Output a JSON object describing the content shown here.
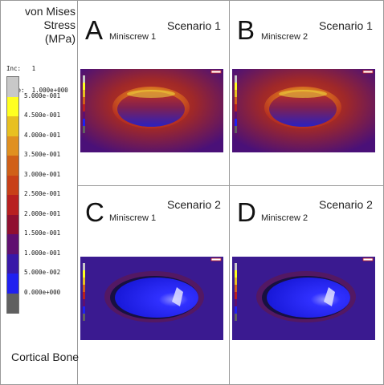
{
  "legend": {
    "title_lines": [
      "von Mises",
      "Stress",
      "(MPa)"
    ],
    "inc_label": "Inc:",
    "inc_value": "1",
    "time_label": "Time:",
    "time_value": "1.000e+000",
    "ticks": [
      "5.000e-001",
      "4.500e-001",
      "4.000e-001",
      "3.500e-001",
      "3.000e-001",
      "2.500e-001",
      "2.000e-001",
      "1.500e-001",
      "1.000e-001",
      "5.000e-002",
      "0.000e+000"
    ],
    "colors": [
      "#c8c8c8",
      "#ffff20",
      "#e8c020",
      "#e09020",
      "#d06018",
      "#c84018",
      "#b82020",
      "#901030",
      "#601070",
      "#3818a8",
      "#2020f0",
      "#606060"
    ],
    "material": "Cortical Bone"
  },
  "panels": [
    {
      "letter": "A",
      "screw": "Miniscrew 1",
      "scenario": "Scenario 1",
      "mode": "s1"
    },
    {
      "letter": "B",
      "screw": "Miniscrew 2",
      "scenario": "Scenario 1",
      "mode": "s1"
    },
    {
      "letter": "C",
      "screw": "Miniscrew 1",
      "scenario": "Scenario 2",
      "mode": "s2"
    },
    {
      "letter": "D",
      "screw": "Miniscrew 2",
      "scenario": "Scenario 2",
      "mode": "s2"
    }
  ]
}
